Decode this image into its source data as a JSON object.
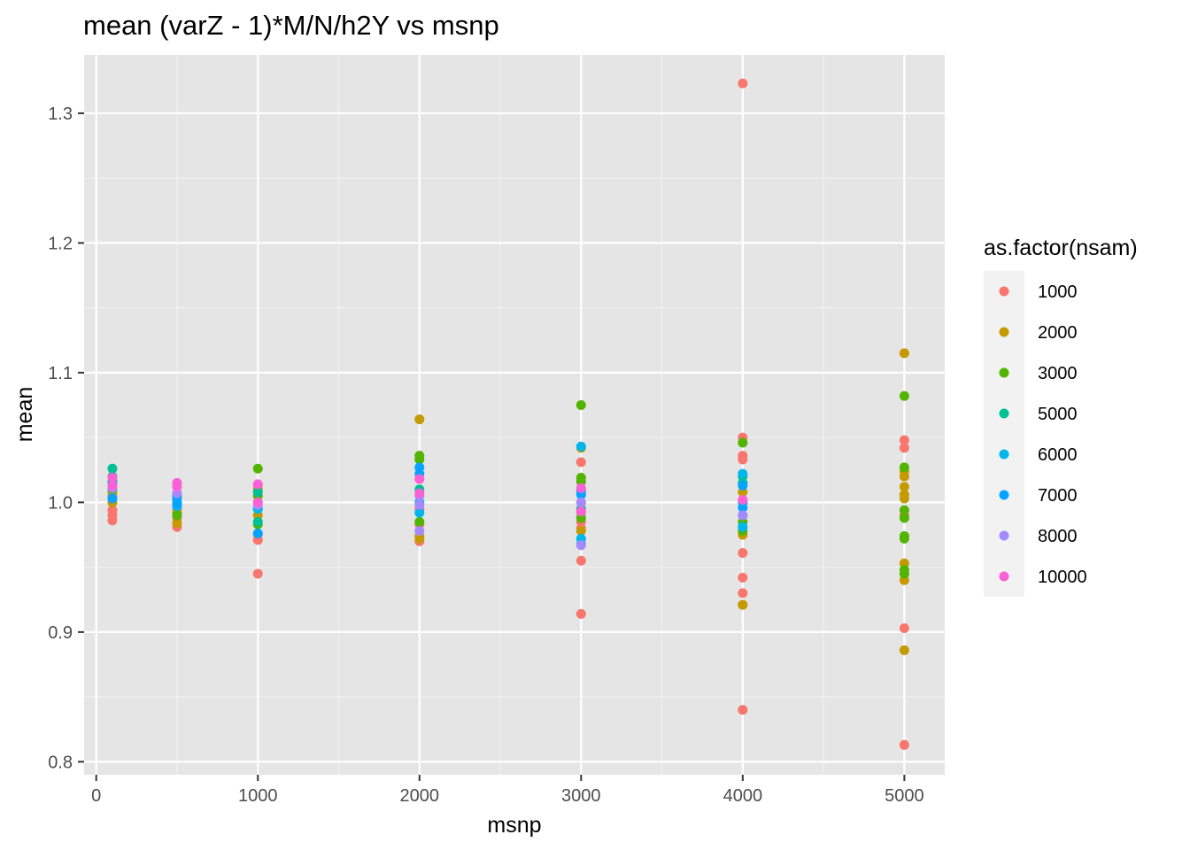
{
  "chart_data": {
    "type": "scatter",
    "title": "mean (varZ - 1)*M/N/h2Y vs msnp",
    "xlabel": "msnp",
    "ylabel": "mean",
    "xlim": [
      -75,
      5250
    ],
    "ylim": [
      0.79,
      1.345
    ],
    "x_ticks": [
      0,
      1000,
      2000,
      3000,
      4000,
      5000
    ],
    "x_tick_labels": [
      "0",
      "1000",
      "2000",
      "3000",
      "4000",
      "5000"
    ],
    "y_ticks": [
      0.8,
      0.9,
      1.0,
      1.1,
      1.2,
      1.3
    ],
    "y_tick_labels": [
      "0.8",
      "0.9",
      "1.0",
      "1.1",
      "1.2",
      "1.3"
    ],
    "grid": true,
    "background": "#e5e5e5",
    "legend": {
      "title": "as.factor(nsam)",
      "position": "right"
    },
    "series": [
      {
        "name": "1000",
        "color": "#F8766D",
        "points": [
          [
            100,
            0.986
          ],
          [
            100,
            0.99
          ],
          [
            100,
            0.994
          ],
          [
            100,
            1.0
          ],
          [
            100,
            1.005
          ],
          [
            500,
            0.981
          ],
          [
            500,
            0.988
          ],
          [
            500,
            0.995
          ],
          [
            1000,
            0.945
          ],
          [
            1000,
            0.971
          ],
          [
            1000,
            0.975
          ],
          [
            1000,
            1.013
          ],
          [
            2000,
            0.97
          ],
          [
            2000,
            0.983
          ],
          [
            2000,
            0.995
          ],
          [
            2000,
            1.018
          ],
          [
            3000,
            0.914
          ],
          [
            3000,
            0.955
          ],
          [
            3000,
            0.98
          ],
          [
            3000,
            0.985
          ],
          [
            3000,
            1.031
          ],
          [
            4000,
            0.84
          ],
          [
            4000,
            0.921
          ],
          [
            4000,
            0.93
          ],
          [
            4000,
            0.942
          ],
          [
            4000,
            0.961
          ],
          [
            4000,
            1.002
          ],
          [
            4000,
            1.033
          ],
          [
            4000,
            1.036
          ],
          [
            4000,
            1.05
          ],
          [
            4000,
            1.323
          ],
          [
            5000,
            0.813
          ],
          [
            5000,
            0.903
          ],
          [
            5000,
            0.99
          ],
          [
            5000,
            1.042
          ],
          [
            5000,
            1.048
          ]
        ]
      },
      {
        "name": "2000",
        "color": "#C49A00",
        "points": [
          [
            100,
            1.0
          ],
          [
            100,
            1.008
          ],
          [
            500,
            0.984
          ],
          [
            500,
            0.992
          ],
          [
            1000,
            0.99
          ],
          [
            1000,
            1.01
          ],
          [
            2000,
            0.972
          ],
          [
            2000,
            0.974
          ],
          [
            2000,
            1.064
          ],
          [
            3000,
            0.978
          ],
          [
            3000,
            0.992
          ],
          [
            3000,
            1.042
          ],
          [
            4000,
            0.921
          ],
          [
            4000,
            0.975
          ],
          [
            4000,
            1.008
          ],
          [
            5000,
            0.886
          ],
          [
            5000,
            0.94
          ],
          [
            5000,
            0.953
          ],
          [
            5000,
            1.003
          ],
          [
            5000,
            1.006
          ],
          [
            5000,
            1.012
          ],
          [
            5000,
            1.02
          ],
          [
            5000,
            1.024
          ],
          [
            5000,
            1.115
          ]
        ]
      },
      {
        "name": "3000",
        "color": "#53B400",
        "points": [
          [
            100,
            1.01
          ],
          [
            100,
            1.016
          ],
          [
            500,
            0.99
          ],
          [
            500,
            1.0
          ],
          [
            1000,
            0.983
          ],
          [
            1000,
            0.995
          ],
          [
            1000,
            1.0
          ],
          [
            1000,
            1.005
          ],
          [
            1000,
            1.026
          ],
          [
            2000,
            0.985
          ],
          [
            2000,
            1.033
          ],
          [
            2000,
            1.036
          ],
          [
            3000,
            0.988
          ],
          [
            3000,
            1.0
          ],
          [
            3000,
            1.016
          ],
          [
            3000,
            1.019
          ],
          [
            3000,
            1.075
          ],
          [
            4000,
            0.978
          ],
          [
            4000,
            0.985
          ],
          [
            4000,
            1.046
          ],
          [
            5000,
            0.945
          ],
          [
            5000,
            0.948
          ],
          [
            5000,
            0.972
          ],
          [
            5000,
            0.974
          ],
          [
            5000,
            0.988
          ],
          [
            5000,
            0.994
          ],
          [
            5000,
            1.027
          ],
          [
            5000,
            1.082
          ]
        ]
      },
      {
        "name": "5000",
        "color": "#00C094",
        "points": [
          [
            100,
            1.02
          ],
          [
            100,
            1.026
          ],
          [
            500,
            1.005
          ],
          [
            1000,
            0.985
          ],
          [
            1000,
            1.008
          ],
          [
            2000,
            1.01
          ],
          [
            3000,
            0.995
          ],
          [
            4000,
            1.015
          ],
          [
            4000,
            1.02
          ]
        ]
      },
      {
        "name": "6000",
        "color": "#00B6EB",
        "points": [
          [
            100,
            1.015
          ],
          [
            500,
            0.997
          ],
          [
            1000,
            0.995
          ],
          [
            2000,
            0.992
          ],
          [
            2000,
            1.0
          ],
          [
            3000,
            0.968
          ],
          [
            3000,
            0.972
          ],
          [
            3000,
            1.043
          ],
          [
            4000,
            0.981
          ],
          [
            4000,
            1.0
          ],
          [
            4000,
            1.022
          ]
        ]
      },
      {
        "name": "7000",
        "color": "#06A4FF",
        "points": [
          [
            100,
            1.003
          ],
          [
            500,
            0.999
          ],
          [
            500,
            1.003
          ],
          [
            1000,
            0.976
          ],
          [
            2000,
            1.022
          ],
          [
            2000,
            1.027
          ],
          [
            3000,
            1.006
          ],
          [
            3000,
            1.009
          ],
          [
            4000,
            0.99
          ],
          [
            4000,
            0.996
          ],
          [
            4000,
            1.013
          ]
        ]
      },
      {
        "name": "8000",
        "color": "#A58AFF",
        "points": [
          [
            100,
            1.011
          ],
          [
            500,
            1.007
          ],
          [
            1000,
            0.998
          ],
          [
            2000,
            0.978
          ],
          [
            2000,
            0.998
          ],
          [
            2000,
            1.005
          ],
          [
            3000,
            0.967
          ],
          [
            3000,
            1.0
          ],
          [
            4000,
            0.99
          ]
        ]
      },
      {
        "name": "10000",
        "color": "#FB61D7",
        "points": [
          [
            100,
            1.013
          ],
          [
            100,
            1.019
          ],
          [
            500,
            1.012
          ],
          [
            500,
            1.015
          ],
          [
            1000,
            1.0
          ],
          [
            1000,
            1.014
          ],
          [
            2000,
            1.007
          ],
          [
            2000,
            1.018
          ],
          [
            3000,
            0.993
          ],
          [
            3000,
            1.011
          ],
          [
            4000,
            1.002
          ]
        ]
      }
    ]
  }
}
